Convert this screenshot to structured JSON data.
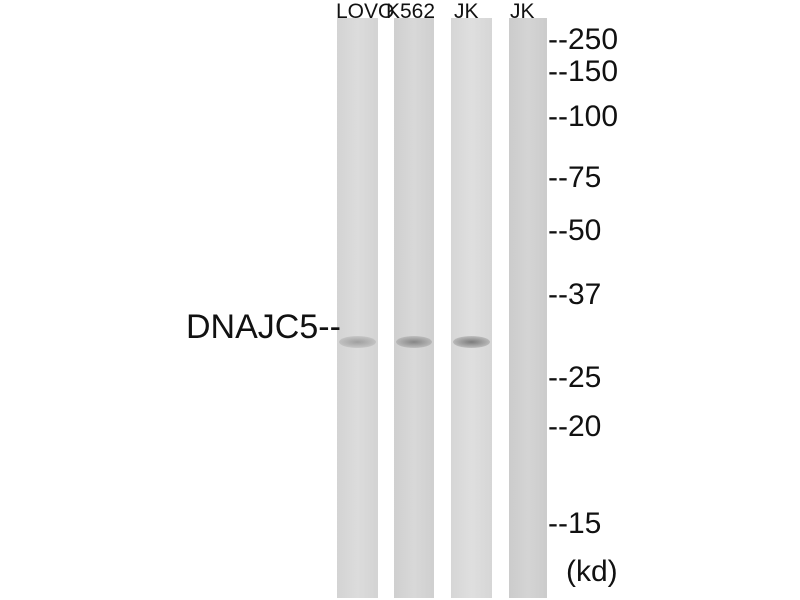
{
  "lanes": [
    {
      "label": "LOVO",
      "band_intensity": 0.5
    },
    {
      "label": "K562",
      "band_intensity": 0.7
    },
    {
      "label": "JK",
      "band_intensity": 0.8
    },
    {
      "label": "JK",
      "band_intensity": 0
    }
  ],
  "protein_label": "DNAJC5--",
  "markers": [
    "--250",
    "--150",
    "--100",
    "--75",
    "--50",
    "--37",
    "--25",
    "--20",
    "--15"
  ],
  "unit_label": "(kd)",
  "colors": {
    "lane_background": "#dcdcdc",
    "band": "#8a8a8a"
  }
}
